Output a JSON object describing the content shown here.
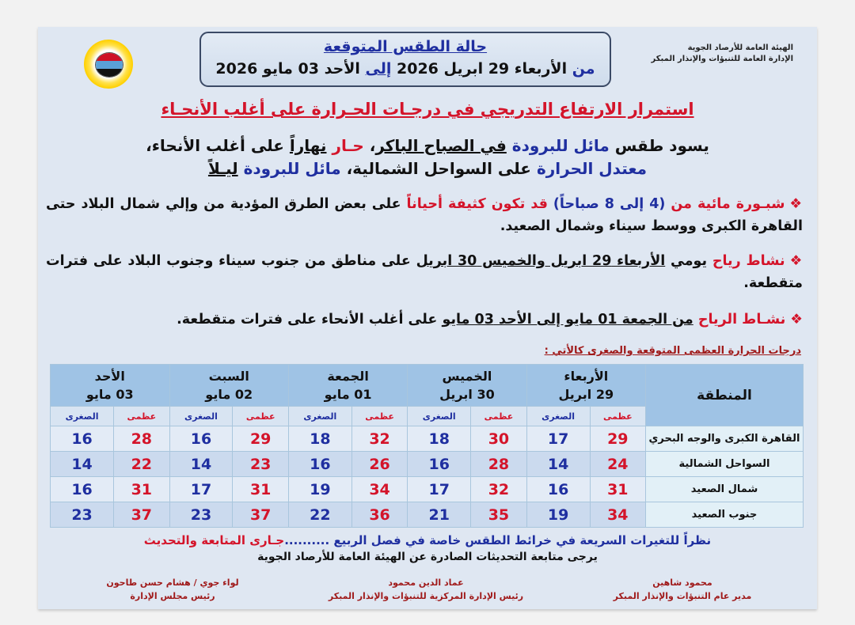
{
  "org": {
    "line1": "الهيئة العامة للأرصاد الجوية",
    "line2": "الإدارة العامة للتنبؤات والإنذار المبكر"
  },
  "title": {
    "main": "حالة الطقس المتوقعة",
    "range": [
      {
        "t": "من ",
        "c": "blue"
      },
      {
        "t": "الأربعاء 29 ابريل 2026 ",
        "c": "black"
      },
      {
        "t": "إلى",
        "c": "blue",
        "u": true
      },
      {
        "t": " الأحد 03 مايو 2026",
        "c": "black"
      }
    ]
  },
  "headline": "استمرار الارتفاع التدريجي في درجـات الحـرارة على أغلب الأنحـاء",
  "lead": [
    [
      {
        "t": "يسود طقس  ",
        "c": "black"
      },
      {
        "t": "مائل للبرودة ",
        "c": "blue"
      },
      {
        "t": "في الصباح الباكر",
        "c": "black",
        "u": true
      },
      {
        "t": "، ",
        "c": "black"
      },
      {
        "t": "حـار ",
        "c": "red"
      },
      {
        "t": "نهاراً",
        "c": "black",
        "u": true
      },
      {
        "t": " على أغلب الأنحاء،",
        "c": "black"
      }
    ],
    [
      {
        "t": "معتدل الحرارة ",
        "c": "blue"
      },
      {
        "t": "على السواحل الشمالية، ",
        "c": "black"
      },
      {
        "t": "مائل للبرودة ",
        "c": "blue"
      },
      {
        "t": "ليـلاً",
        "c": "black",
        "u": true
      }
    ]
  ],
  "bullets": [
    [
      {
        "t": "شبـورة مائية من ",
        "c": "red"
      },
      {
        "t": "(4 إلى 8 صباحاً) ",
        "c": "blue"
      },
      {
        "t": "قد تكون كثيفة أحياناً ",
        "c": "red"
      },
      {
        "t": "على بعض الطرق المؤدية من وإلي شمال البلاد حتى القاهرة الكبرى ووسط سيناء وشمال الصعيد.",
        "c": "black"
      }
    ],
    [
      {
        "t": "نشاط رياح ",
        "c": "red"
      },
      {
        "t": "يومي ",
        "c": "black"
      },
      {
        "t": "الأربعاء 29 ابريل والخميس 30 ابريل",
        "c": "black",
        "u": true
      },
      {
        "t": " على مناطق من جنوب سيناء وجنوب البلاد على فترات متقطعة.",
        "c": "black"
      }
    ],
    [
      {
        "t": "نشـاط الرياح ",
        "c": "red"
      },
      {
        "t": "من الجمعة 01 مايو إلى الأحد 03 مايو",
        "c": "black",
        "u": true
      },
      {
        "t": " على أغلب الأنحاء على فترات متقطعة.",
        "c": "black"
      }
    ]
  ],
  "bullet_mark": "❖",
  "table_caption": "درجات الحرارة العظمى المتوقعة والصغرى كالأتي :",
  "table": {
    "region_header": "المنطقة",
    "max_label": "عظمى",
    "min_label": "الصغرى",
    "days": [
      {
        "name": "الأربعاء",
        "date": "29 ابريل"
      },
      {
        "name": "الخميس",
        "date": "30 ابريل"
      },
      {
        "name": "الجمعة",
        "date": "01 مايو"
      },
      {
        "name": "السبت",
        "date": "02 مايو"
      },
      {
        "name": "الأحد",
        "date": "03 مايو"
      }
    ],
    "rows": [
      {
        "region": "القاهرة الكبرى والوجه البحري",
        "values": [
          [
            "29",
            "17"
          ],
          [
            "30",
            "18"
          ],
          [
            "32",
            "18"
          ],
          [
            "29",
            "16"
          ],
          [
            "28",
            "16"
          ]
        ]
      },
      {
        "region": "السواحل الشمالية",
        "values": [
          [
            "24",
            "14"
          ],
          [
            "28",
            "16"
          ],
          [
            "26",
            "16"
          ],
          [
            "23",
            "14"
          ],
          [
            "22",
            "14"
          ]
        ]
      },
      {
        "region": "شمال الصعيد",
        "values": [
          [
            "31",
            "16"
          ],
          [
            "32",
            "17"
          ],
          [
            "34",
            "19"
          ],
          [
            "31",
            "17"
          ],
          [
            "31",
            "16"
          ]
        ]
      },
      {
        "region": "جنوب الصعيد",
        "values": [
          [
            "34",
            "19"
          ],
          [
            "35",
            "21"
          ],
          [
            "36",
            "22"
          ],
          [
            "37",
            "23"
          ],
          [
            "37",
            "23"
          ]
        ]
      }
    ]
  },
  "note": [
    {
      "t": "نظراً للتغيرات السريعة في خرائط الطقس خاصة في فصل الربيع ..........",
      "c": "blue"
    },
    {
      "t": "جـارى المتابعة والتحديث",
      "c": "red"
    }
  ],
  "note2": "يرجى متابعة التحديثات الصادرة عن الهيئة العامة للأرصاد الجوية",
  "signatures": [
    {
      "name": "محمود شاهين",
      "role": "مدير عام التنبؤات والإنذار المبكر"
    },
    {
      "name": "عماد الدين محمود",
      "role": "رئيس الإدارة المركزية للتنبؤات والإنذار المبكر"
    },
    {
      "name": "لواء جوي / هشام حسن طاحون",
      "role": "رئيس مجلس الإدارة"
    }
  ],
  "colors": {
    "max": "#d4142a",
    "min": "#1f2fa0",
    "header": "#9fc3e5",
    "card": "#dfe7f2"
  }
}
